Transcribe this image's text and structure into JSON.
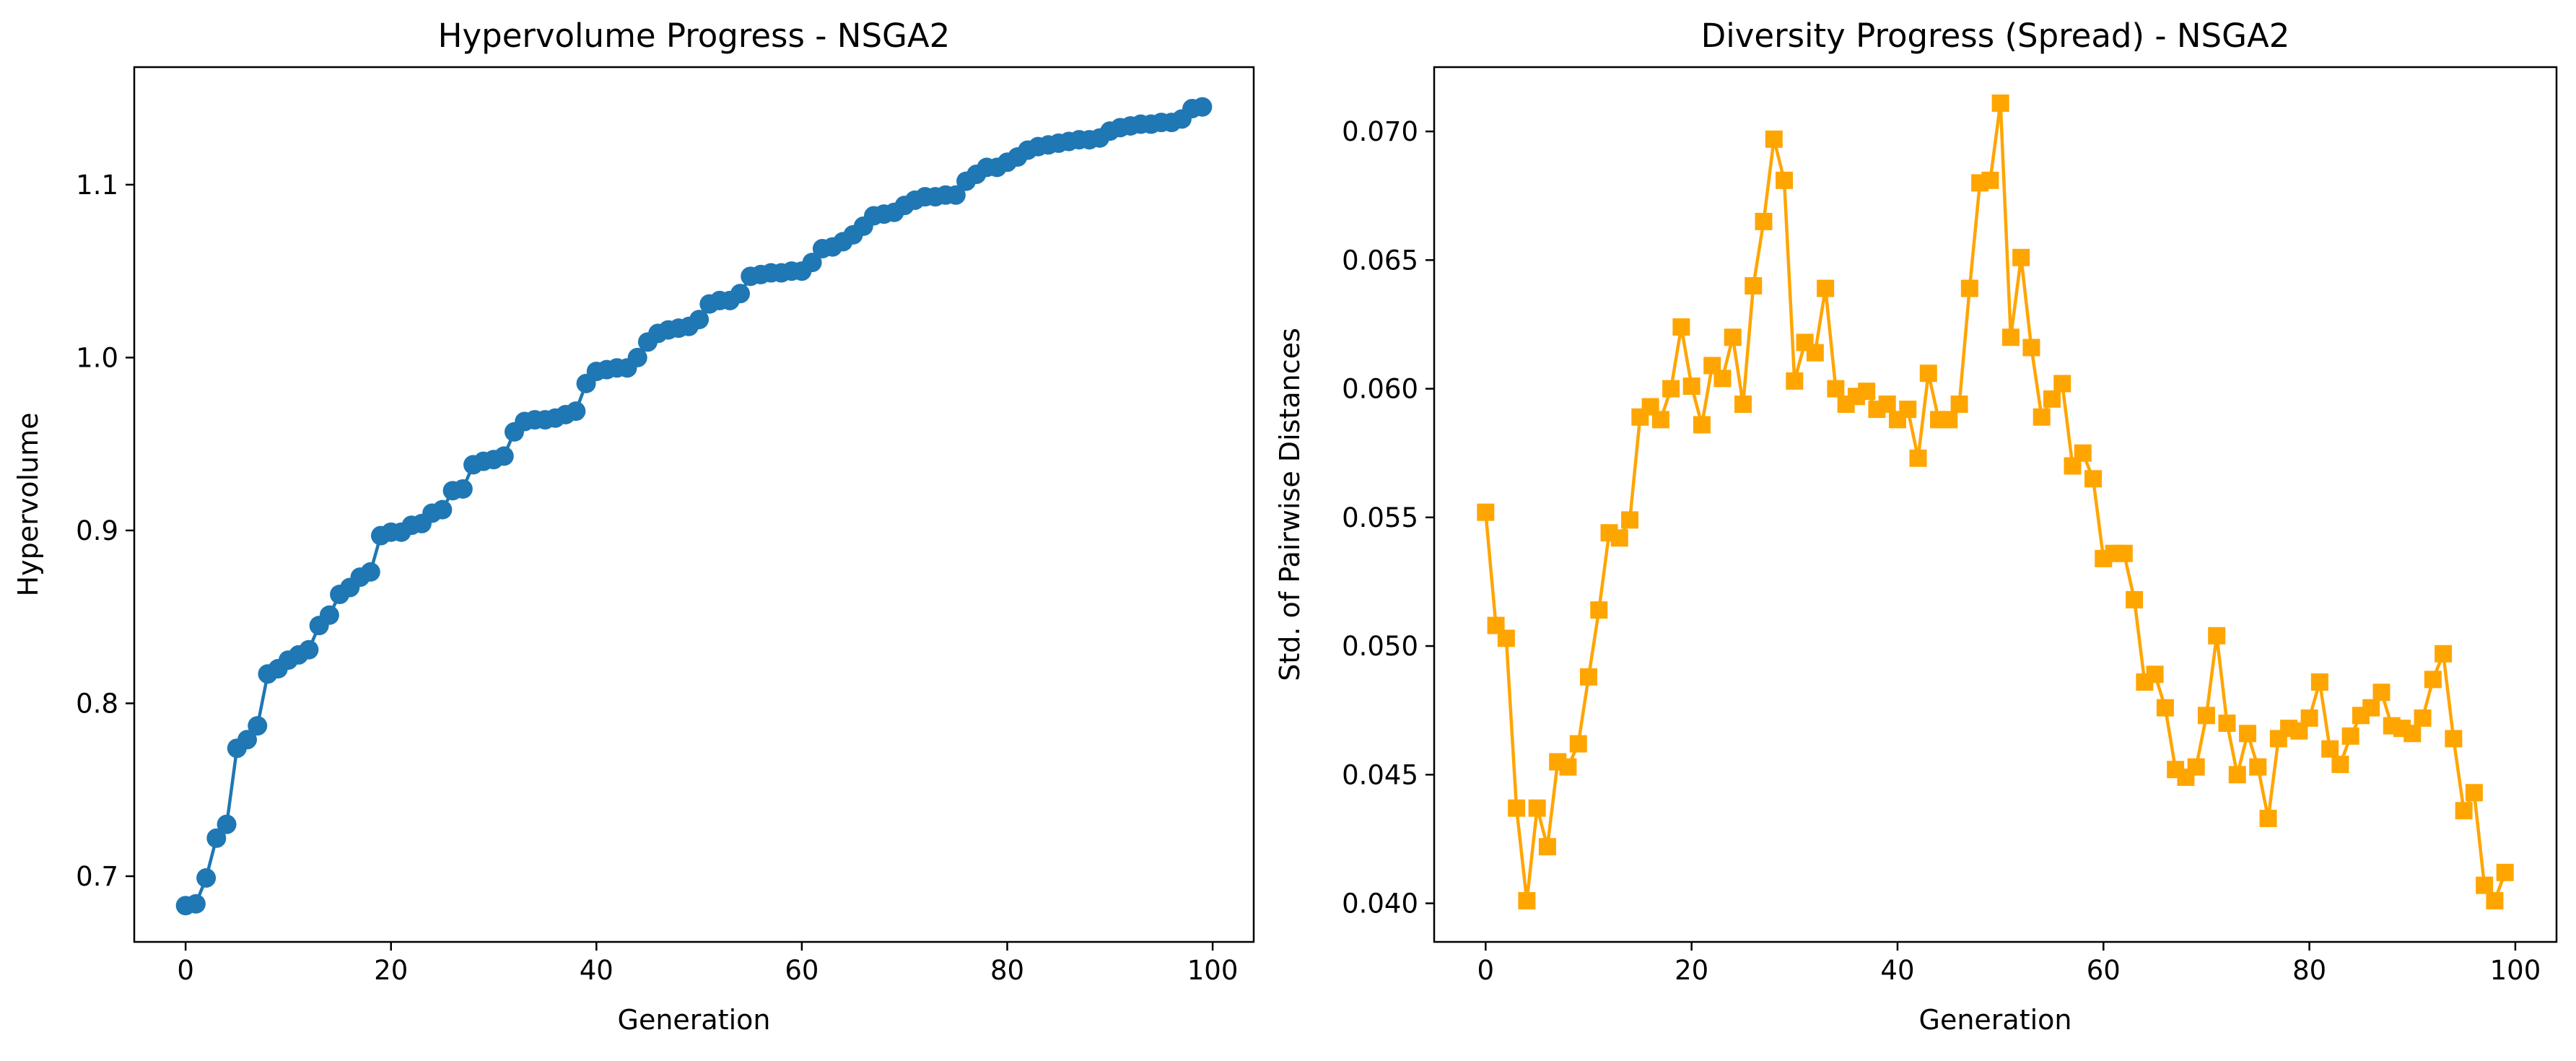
{
  "chart_data": [
    {
      "type": "line",
      "title": "Hypervolume Progress - NSGA2",
      "xlabel": "Generation",
      "ylabel": "Hypervolume",
      "xlim": [
        -5,
        104
      ],
      "ylim": [
        0.662,
        1.168
      ],
      "xticks": [
        0,
        20,
        40,
        60,
        80,
        100
      ],
      "yticks": [
        0.7,
        0.8,
        0.9,
        1.0,
        1.1
      ],
      "xtick_labels": [
        "0",
        "20",
        "40",
        "60",
        "80",
        "100"
      ],
      "ytick_labels": [
        "0.7",
        "0.8",
        "0.9",
        "1.0",
        "1.1"
      ],
      "grid": false,
      "series": [
        {
          "color": "#1f77b4",
          "marker": "circle",
          "x": [
            0,
            1,
            2,
            3,
            4,
            5,
            6,
            7,
            8,
            9,
            10,
            11,
            12,
            13,
            14,
            15,
            16,
            17,
            18,
            19,
            20,
            21,
            22,
            23,
            24,
            25,
            26,
            27,
            28,
            29,
            30,
            31,
            32,
            33,
            34,
            35,
            36,
            37,
            38,
            39,
            40,
            41,
            42,
            43,
            44,
            45,
            46,
            47,
            48,
            49,
            50,
            51,
            52,
            53,
            54,
            55,
            56,
            57,
            58,
            59,
            60,
            61,
            62,
            63,
            64,
            65,
            66,
            67,
            68,
            69,
            70,
            71,
            72,
            73,
            74,
            75,
            76,
            77,
            78,
            79,
            80,
            81,
            82,
            83,
            84,
            85,
            86,
            87,
            88,
            89,
            90,
            91,
            92,
            93,
            94,
            95,
            96,
            97,
            98,
            99
          ],
          "y": [
            0.683,
            0.684,
            0.699,
            0.722,
            0.73,
            0.774,
            0.779,
            0.787,
            0.817,
            0.82,
            0.825,
            0.828,
            0.831,
            0.845,
            0.851,
            0.863,
            0.867,
            0.873,
            0.876,
            0.897,
            0.899,
            0.899,
            0.903,
            0.904,
            0.91,
            0.912,
            0.923,
            0.924,
            0.938,
            0.94,
            0.941,
            0.943,
            0.957,
            0.963,
            0.964,
            0.964,
            0.965,
            0.967,
            0.969,
            0.985,
            0.992,
            0.993,
            0.994,
            0.994,
            1.0,
            1.009,
            1.014,
            1.016,
            1.017,
            1.018,
            1.022,
            1.031,
            1.033,
            1.033,
            1.037,
            1.047,
            1.048,
            1.049,
            1.049,
            1.05,
            1.05,
            1.055,
            1.063,
            1.064,
            1.067,
            1.071,
            1.076,
            1.082,
            1.083,
            1.084,
            1.088,
            1.091,
            1.093,
            1.093,
            1.094,
            1.094,
            1.102,
            1.106,
            1.11,
            1.11,
            1.113,
            1.116,
            1.12,
            1.122,
            1.123,
            1.124,
            1.125,
            1.126,
            1.126,
            1.127,
            1.131,
            1.133,
            1.134,
            1.135,
            1.135,
            1.136,
            1.136,
            1.138,
            1.144,
            1.145
          ]
        }
      ]
    },
    {
      "type": "line",
      "title": "Diversity Progress (Spread) - NSGA2",
      "xlabel": "Generation",
      "ylabel": "Std. of Pairwise Distances",
      "xlim": [
        -5,
        104
      ],
      "ylim": [
        0.0385,
        0.0725
      ],
      "xticks": [
        0,
        20,
        40,
        60,
        80,
        100
      ],
      "yticks": [
        0.04,
        0.045,
        0.05,
        0.055,
        0.06,
        0.065,
        0.07
      ],
      "xtick_labels": [
        "0",
        "20",
        "40",
        "60",
        "80",
        "100"
      ],
      "ytick_labels": [
        "0.040",
        "0.045",
        "0.050",
        "0.055",
        "0.060",
        "0.065",
        "0.070"
      ],
      "grid": false,
      "series": [
        {
          "color": "#ffa500",
          "marker": "square",
          "x": [
            0,
            1,
            2,
            3,
            4,
            5,
            6,
            7,
            8,
            9,
            10,
            11,
            12,
            13,
            14,
            15,
            16,
            17,
            18,
            19,
            20,
            21,
            22,
            23,
            24,
            25,
            26,
            27,
            28,
            29,
            30,
            31,
            32,
            33,
            34,
            35,
            36,
            37,
            38,
            39,
            40,
            41,
            42,
            43,
            44,
            45,
            46,
            47,
            48,
            49,
            50,
            51,
            52,
            53,
            54,
            55,
            56,
            57,
            58,
            59,
            60,
            61,
            62,
            63,
            64,
            65,
            66,
            67,
            68,
            69,
            70,
            71,
            72,
            73,
            74,
            75,
            76,
            77,
            78,
            79,
            80,
            81,
            82,
            83,
            84,
            85,
            86,
            87,
            88,
            89,
            90,
            91,
            92,
            93,
            94,
            95,
            96,
            97,
            98,
            99
          ],
          "y": [
            0.0552,
            0.0508,
            0.0503,
            0.0437,
            0.0401,
            0.0437,
            0.0422,
            0.0455,
            0.0453,
            0.0462,
            0.0488,
            0.0514,
            0.0544,
            0.0542,
            0.0549,
            0.0589,
            0.0593,
            0.0588,
            0.06,
            0.0624,
            0.0601,
            0.0586,
            0.0609,
            0.0604,
            0.062,
            0.0594,
            0.064,
            0.0665,
            0.0697,
            0.0681,
            0.0603,
            0.0618,
            0.0614,
            0.0639,
            0.06,
            0.0594,
            0.0597,
            0.0599,
            0.0592,
            0.0594,
            0.0588,
            0.0592,
            0.0573,
            0.0606,
            0.0588,
            0.0588,
            0.0594,
            0.0639,
            0.068,
            0.0681,
            0.0711,
            0.062,
            0.0651,
            0.0616,
            0.0589,
            0.0596,
            0.0602,
            0.057,
            0.0575,
            0.0565,
            0.0534,
            0.0536,
            0.0536,
            0.0518,
            0.0486,
            0.0489,
            0.0476,
            0.0452,
            0.0449,
            0.0453,
            0.0473,
            0.0504,
            0.047,
            0.045,
            0.0466,
            0.0453,
            0.0433,
            0.0464,
            0.0468,
            0.0467,
            0.0472,
            0.0486,
            0.046,
            0.0454,
            0.0465,
            0.0473,
            0.0476,
            0.0482,
            0.0469,
            0.0468,
            0.0466,
            0.0472,
            0.0487,
            0.0497,
            0.0464,
            0.0436,
            0.0443,
            0.0407,
            0.0401,
            0.0412
          ]
        }
      ]
    }
  ]
}
